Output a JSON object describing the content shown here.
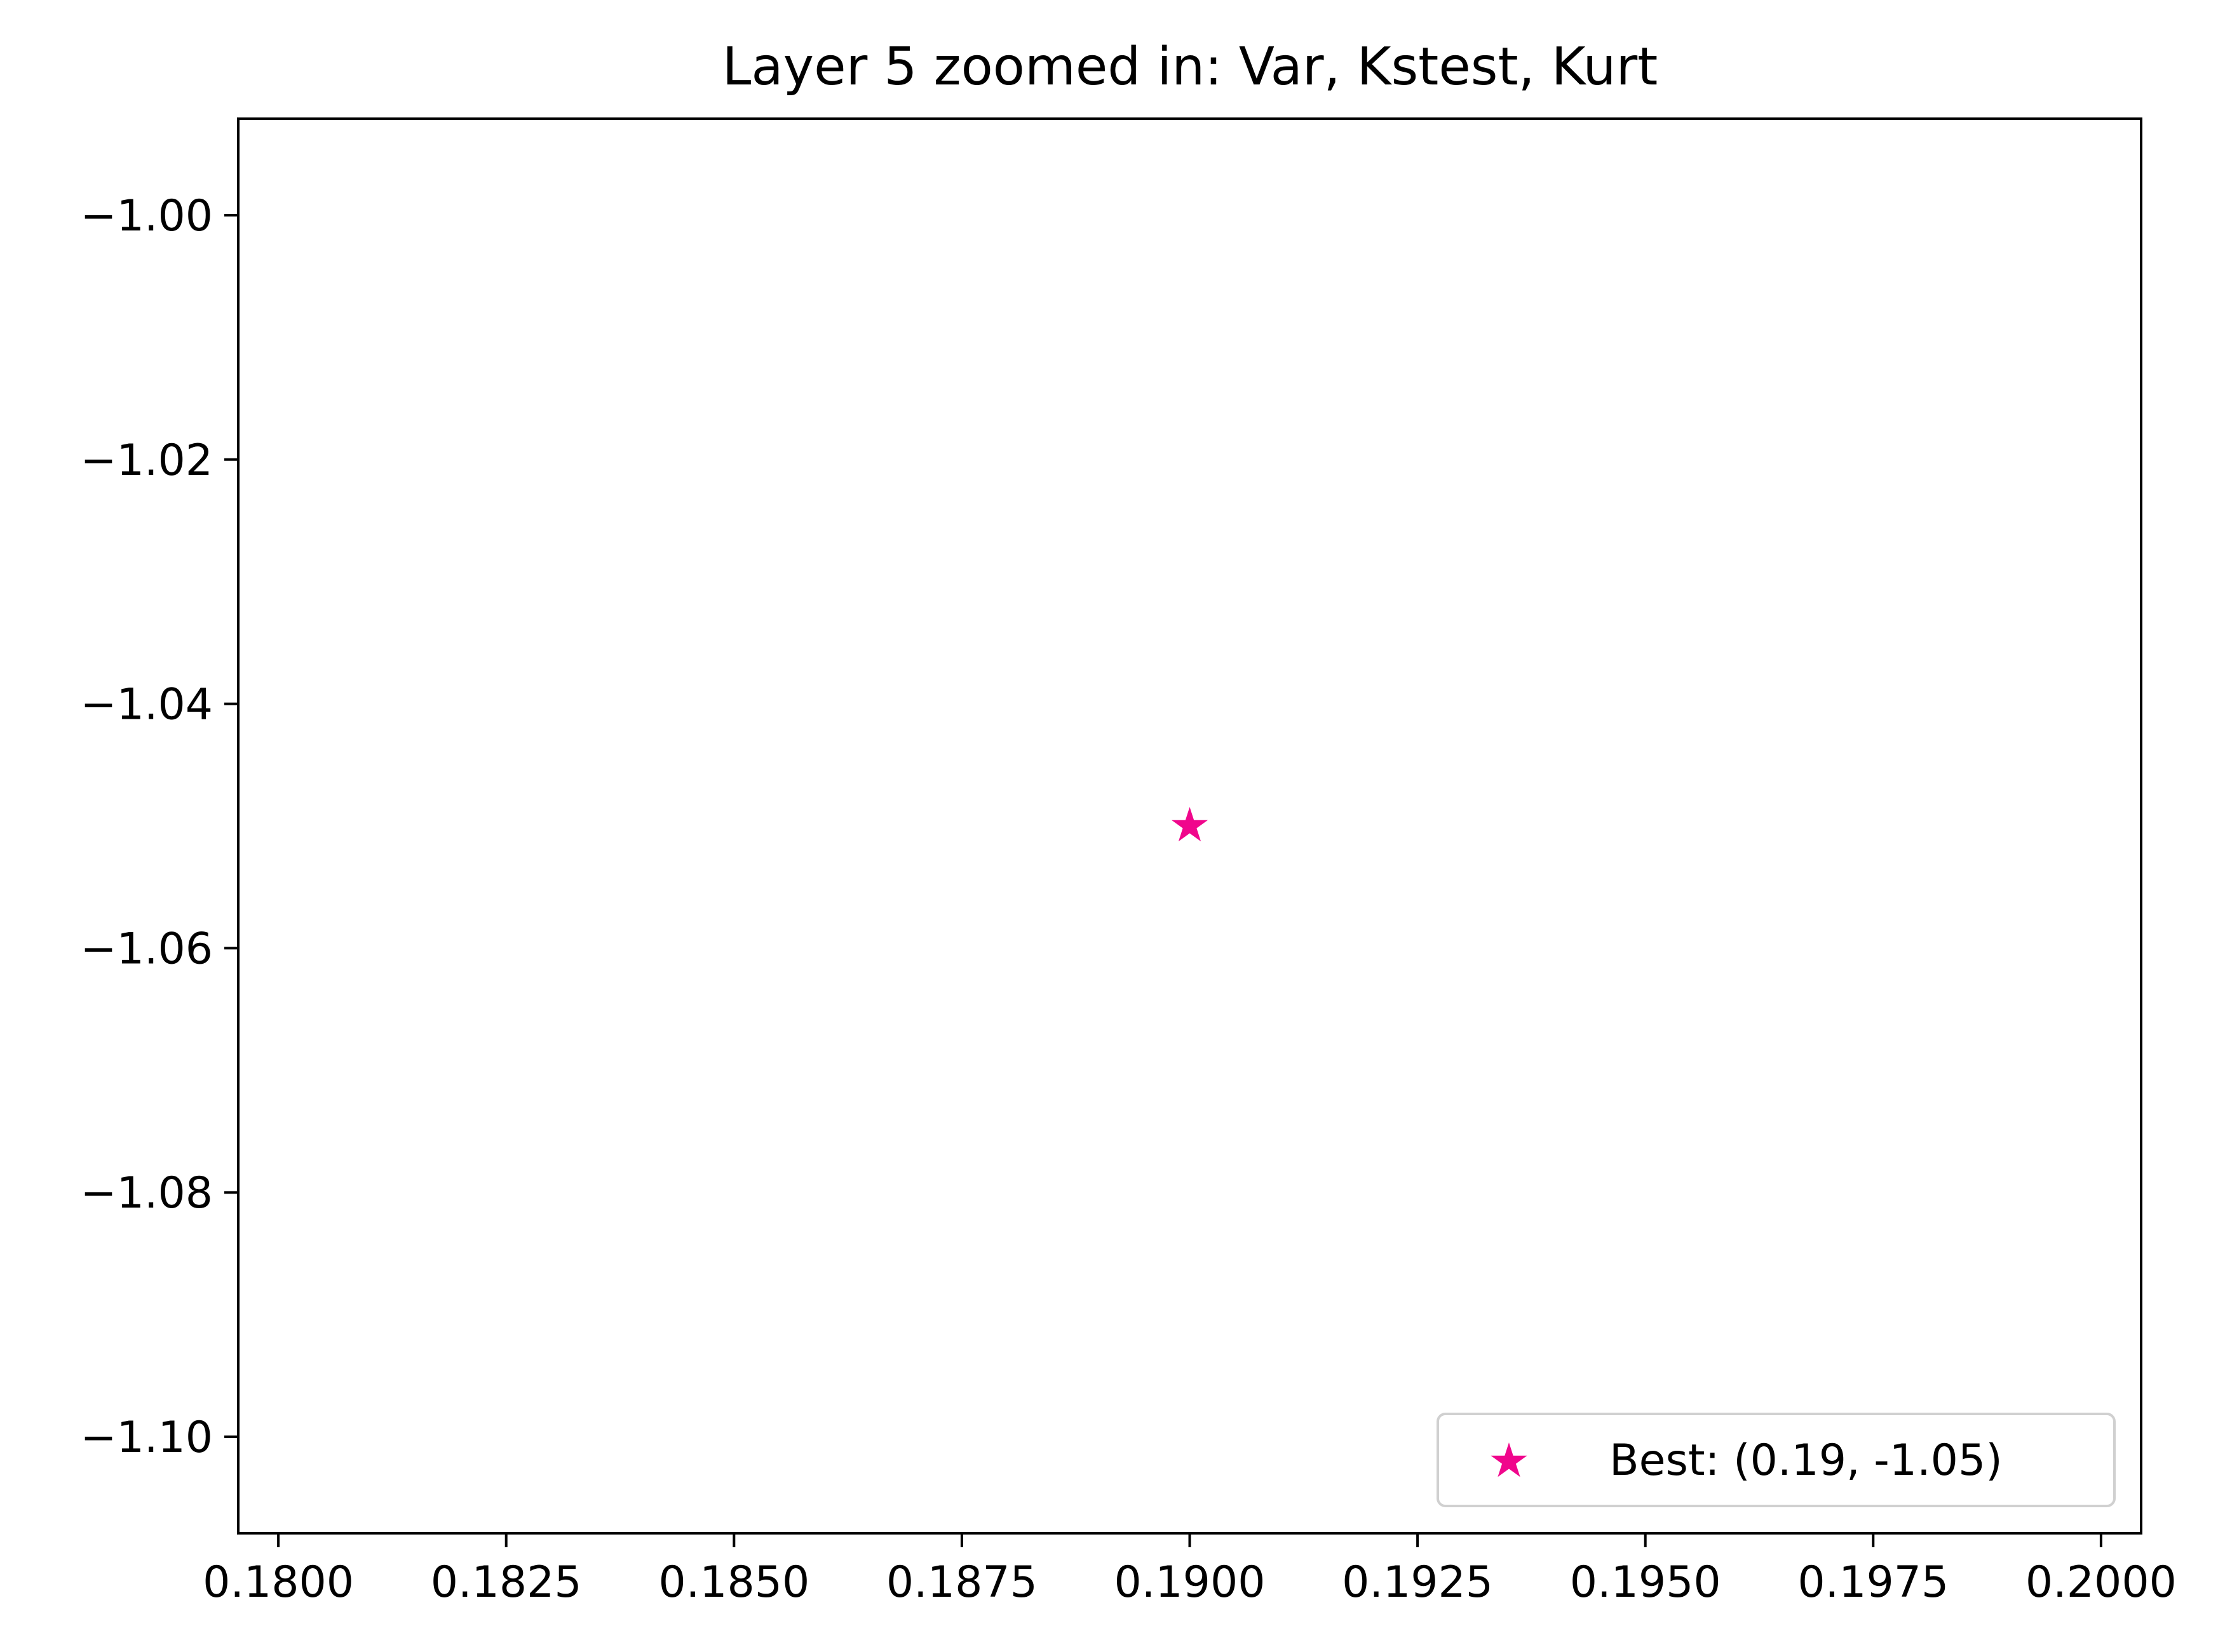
{
  "chart_data": {
    "type": "scatter",
    "title": "Layer 5 zoomed in: Var, Kstest, Kurt",
    "xlabel": "",
    "ylabel": "",
    "xlim": [
      0.17956,
      0.20044
    ],
    "ylim": [
      -1.1079,
      -0.9921
    ],
    "xticks": [
      0.18,
      0.1825,
      0.185,
      0.1875,
      0.19,
      0.1925,
      0.195,
      0.1975,
      0.2
    ],
    "xtick_labels": [
      "0.1800",
      "0.1825",
      "0.1850",
      "0.1875",
      "0.1900",
      "0.1925",
      "0.1950",
      "0.1975",
      "0.2000"
    ],
    "yticks": [
      -1.0,
      -1.02,
      -1.04,
      -1.06,
      -1.08,
      -1.1
    ],
    "ytick_labels": [
      "−1.00",
      "−1.02",
      "−1.04",
      "−1.06",
      "−1.08",
      "−1.10"
    ],
    "series": [
      {
        "name": "Best: (0.19, -1.05)",
        "marker": "star",
        "color": "#f0068c",
        "points": [
          {
            "x": 0.19,
            "y": -1.05
          }
        ]
      }
    ],
    "legend": "bottom-right",
    "grid": false
  }
}
